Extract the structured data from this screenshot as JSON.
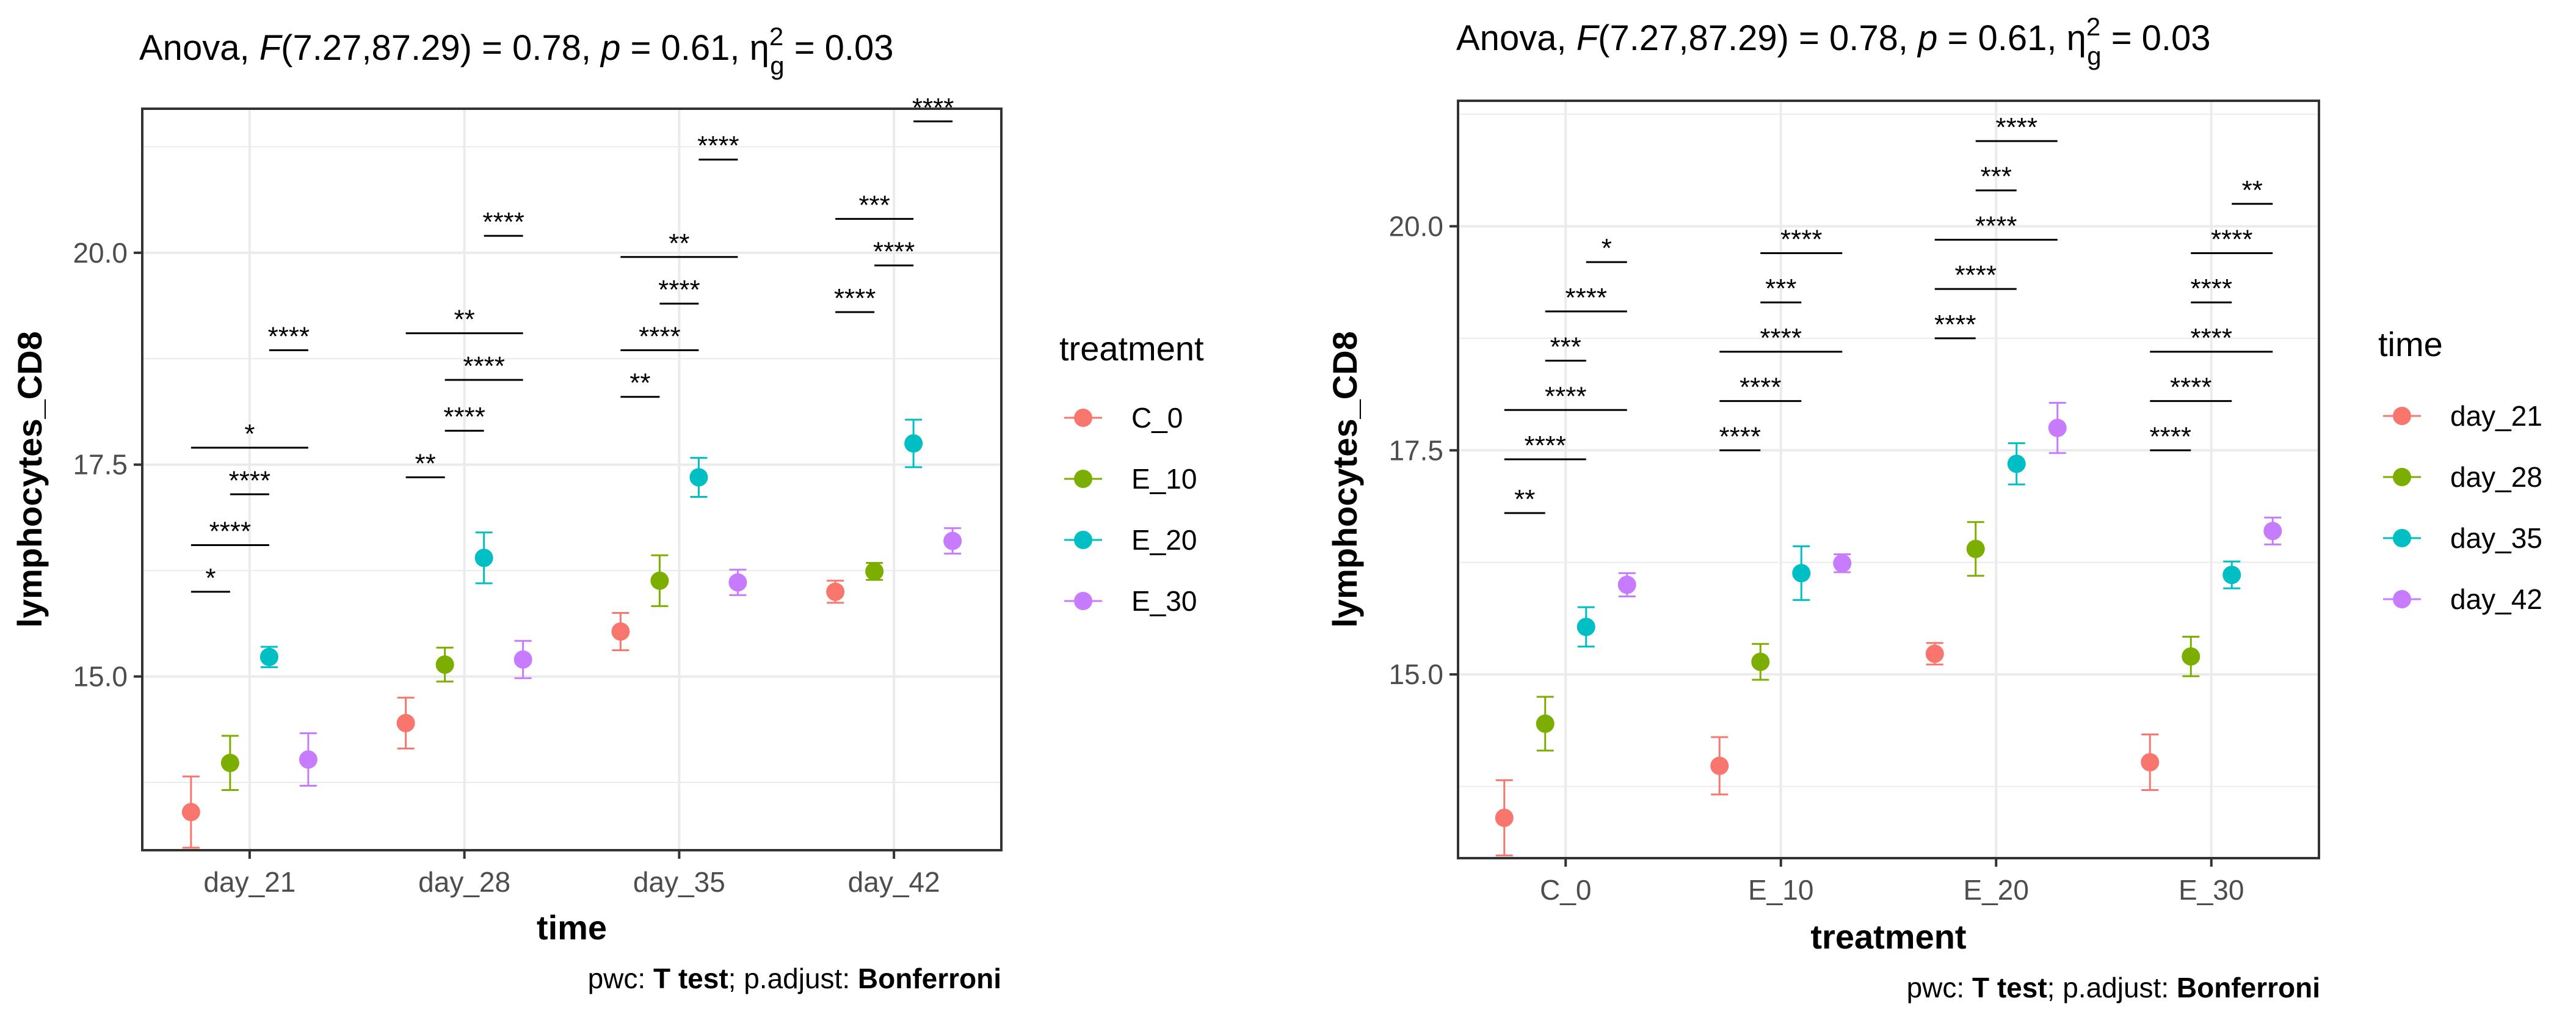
{
  "chart_data": [
    {
      "type": "scatter",
      "subtitle": "Anova, F(7.27,87.29) = 0.78, p = 0.61, η2g = 0.03",
      "caption": "pwc: T test; p.adjust: Bonferroni",
      "xlabel": "time",
      "ylabel": "lymphocytes_CD8",
      "categories": [
        "day_21",
        "day_28",
        "day_35",
        "day_42"
      ],
      "ylim": [
        12.95,
        21.7
      ],
      "yticks": [
        15.0,
        17.5,
        20.0
      ],
      "ytick_labels": [
        "15.0",
        "17.5",
        "20.0"
      ],
      "grid": true,
      "legend": {
        "title": "treatment",
        "position": "right"
      },
      "series": [
        {
          "name": "C_0",
          "color": "#F8766D",
          "values": [
            13.4,
            14.45,
            15.53,
            16.0
          ],
          "errors": [
            0.42,
            0.3,
            0.22,
            0.13
          ]
        },
        {
          "name": "E_10",
          "color": "#7CAE00",
          "values": [
            13.98,
            15.14,
            16.13,
            16.24
          ],
          "errors": [
            0.32,
            0.2,
            0.3,
            0.1
          ]
        },
        {
          "name": "E_20",
          "color": "#00BFC4",
          "values": [
            15.23,
            16.4,
            17.35,
            17.75
          ],
          "errors": [
            0.12,
            0.3,
            0.23,
            0.28
          ]
        },
        {
          "name": "E_30",
          "color": "#C77CFF",
          "values": [
            14.02,
            15.2,
            16.11,
            16.6
          ],
          "errors": [
            0.31,
            0.22,
            0.15,
            0.15
          ]
        }
      ],
      "annotations": [
        {
          "category": 0,
          "from": 0,
          "to": 1,
          "y": 16.0,
          "label": "*"
        },
        {
          "category": 0,
          "from": 0,
          "to": 2,
          "y": 16.55,
          "label": "****"
        },
        {
          "category": 0,
          "from": 1,
          "to": 2,
          "y": 17.15,
          "label": "****"
        },
        {
          "category": 0,
          "from": 0,
          "to": 3,
          "y": 17.7,
          "label": "*"
        },
        {
          "category": 0,
          "from": 2,
          "to": 3,
          "y": 18.85,
          "label": "****"
        },
        {
          "category": 1,
          "from": 0,
          "to": 1,
          "y": 17.35,
          "label": "**"
        },
        {
          "category": 1,
          "from": 1,
          "to": 2,
          "y": 17.9,
          "label": "****"
        },
        {
          "category": 1,
          "from": 1,
          "to": 3,
          "y": 18.5,
          "label": "****"
        },
        {
          "category": 1,
          "from": 0,
          "to": 3,
          "y": 19.05,
          "label": "**"
        },
        {
          "category": 1,
          "from": 2,
          "to": 3,
          "y": 20.2,
          "label": "****"
        },
        {
          "category": 2,
          "from": 0,
          "to": 1,
          "y": 18.3,
          "label": "**"
        },
        {
          "category": 2,
          "from": 0,
          "to": 2,
          "y": 18.85,
          "label": "****"
        },
        {
          "category": 2,
          "from": 1,
          "to": 2,
          "y": 19.4,
          "label": "****"
        },
        {
          "category": 2,
          "from": 0,
          "to": 3,
          "y": 19.95,
          "label": "**"
        },
        {
          "category": 2,
          "from": 2,
          "to": 3,
          "y": 21.1,
          "label": "****"
        },
        {
          "category": 3,
          "from": 0,
          "to": 1,
          "y": 19.3,
          "label": "****"
        },
        {
          "category": 3,
          "from": 1,
          "to": 2,
          "y": 19.85,
          "label": "****"
        },
        {
          "category": 3,
          "from": 0,
          "to": 2,
          "y": 20.4,
          "label": "***"
        },
        {
          "category": 3,
          "from": 2,
          "to": 3,
          "y": 21.55,
          "label": "****"
        }
      ]
    },
    {
      "type": "scatter",
      "subtitle": "Anova, F(7.27,87.29) = 0.78, p = 0.61, η2g = 0.03",
      "caption": "pwc: T test; p.adjust: Bonferroni",
      "xlabel": "treatment",
      "ylabel": "lymphocytes_CD8",
      "categories": [
        "C_0",
        "E_10",
        "E_20",
        "E_30"
      ],
      "ylim": [
        12.95,
        21.4
      ],
      "yticks": [
        15.0,
        17.5,
        20.0
      ],
      "ytick_labels": [
        "15.0",
        "17.5",
        "20.0"
      ],
      "grid": true,
      "legend": {
        "title": "time",
        "position": "right"
      },
      "series": [
        {
          "name": "day_21",
          "color": "#F8766D",
          "values": [
            13.4,
            13.98,
            15.23,
            14.02
          ],
          "errors": [
            0.42,
            0.32,
            0.12,
            0.31
          ]
        },
        {
          "name": "day_28",
          "color": "#7CAE00",
          "values": [
            14.45,
            15.14,
            16.4,
            15.2
          ],
          "errors": [
            0.3,
            0.2,
            0.3,
            0.22
          ]
        },
        {
          "name": "day_35",
          "color": "#00BFC4",
          "values": [
            15.53,
            16.13,
            17.35,
            16.11
          ],
          "errors": [
            0.22,
            0.3,
            0.23,
            0.15
          ]
        },
        {
          "name": "day_42",
          "color": "#C77CFF",
          "values": [
            16.0,
            16.24,
            17.75,
            16.6
          ],
          "errors": [
            0.13,
            0.1,
            0.28,
            0.15
          ]
        }
      ],
      "annotations": [
        {
          "category": 0,
          "from": 0,
          "to": 1,
          "y": 16.8,
          "label": "**"
        },
        {
          "category": 0,
          "from": 0,
          "to": 2,
          "y": 17.4,
          "label": "****"
        },
        {
          "category": 0,
          "from": 0,
          "to": 3,
          "y": 17.95,
          "label": "****"
        },
        {
          "category": 0,
          "from": 1,
          "to": 2,
          "y": 18.5,
          "label": "***"
        },
        {
          "category": 0,
          "from": 1,
          "to": 3,
          "y": 19.05,
          "label": "****"
        },
        {
          "category": 0,
          "from": 2,
          "to": 3,
          "y": 19.6,
          "label": "*"
        },
        {
          "category": 1,
          "from": 0,
          "to": 1,
          "y": 17.5,
          "label": "****"
        },
        {
          "category": 1,
          "from": 0,
          "to": 2,
          "y": 18.05,
          "label": "****"
        },
        {
          "category": 1,
          "from": 0,
          "to": 3,
          "y": 18.6,
          "label": "****"
        },
        {
          "category": 1,
          "from": 1,
          "to": 2,
          "y": 19.15,
          "label": "***"
        },
        {
          "category": 1,
          "from": 1,
          "to": 3,
          "y": 19.7,
          "label": "****"
        },
        {
          "category": 2,
          "from": 0,
          "to": 1,
          "y": 18.75,
          "label": "****"
        },
        {
          "category": 2,
          "from": 0,
          "to": 2,
          "y": 19.3,
          "label": "****"
        },
        {
          "category": 2,
          "from": 0,
          "to": 3,
          "y": 19.85,
          "label": "****"
        },
        {
          "category": 2,
          "from": 1,
          "to": 2,
          "y": 20.4,
          "label": "***"
        },
        {
          "category": 2,
          "from": 1,
          "to": 3,
          "y": 20.95,
          "label": "****"
        },
        {
          "category": 3,
          "from": 0,
          "to": 1,
          "y": 17.5,
          "label": "****"
        },
        {
          "category": 3,
          "from": 0,
          "to": 2,
          "y": 18.05,
          "label": "****"
        },
        {
          "category": 3,
          "from": 0,
          "to": 3,
          "y": 18.6,
          "label": "****"
        },
        {
          "category": 3,
          "from": 1,
          "to": 2,
          "y": 19.15,
          "label": "****"
        },
        {
          "category": 3,
          "from": 1,
          "to": 3,
          "y": 19.7,
          "label": "****"
        },
        {
          "category": 3,
          "from": 2,
          "to": 3,
          "y": 20.25,
          "label": "**"
        }
      ]
    }
  ]
}
